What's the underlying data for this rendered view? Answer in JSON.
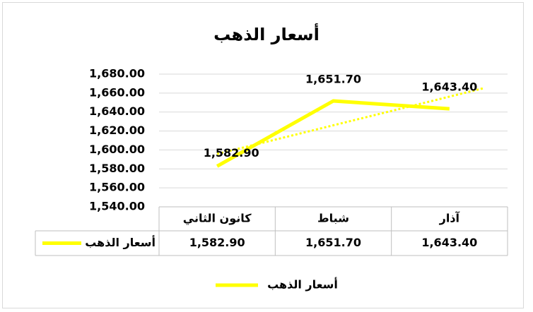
{
  "chart_data": {
    "type": "line",
    "title": "أسعار الذهب",
    "categories": [
      "كانون الثاني",
      "شباط",
      "آذار"
    ],
    "series": [
      {
        "name": "أسعار الذهب",
        "color": "#ffff00",
        "values": [
          1582.9,
          1651.7,
          1643.4
        ],
        "value_labels": [
          "1,582.90",
          "1,651.70",
          "1,643.40"
        ]
      }
    ],
    "ylim": [
      1540,
      1680
    ],
    "yticks": [
      {
        "value": 1540,
        "label": "1,540.00"
      },
      {
        "value": 1560,
        "label": "1,560.00"
      },
      {
        "value": 1580,
        "label": "1,580.00"
      },
      {
        "value": 1600,
        "label": "1,600.00"
      },
      {
        "value": 1620,
        "label": "1,620.00"
      },
      {
        "value": 1640,
        "label": "1,640.00"
      },
      {
        "value": 1660,
        "label": "1,660.00"
      },
      {
        "value": 1680,
        "label": "1,680.00"
      }
    ],
    "grid": true,
    "trendline": "linear",
    "data_table": true,
    "legend": "bottom"
  }
}
